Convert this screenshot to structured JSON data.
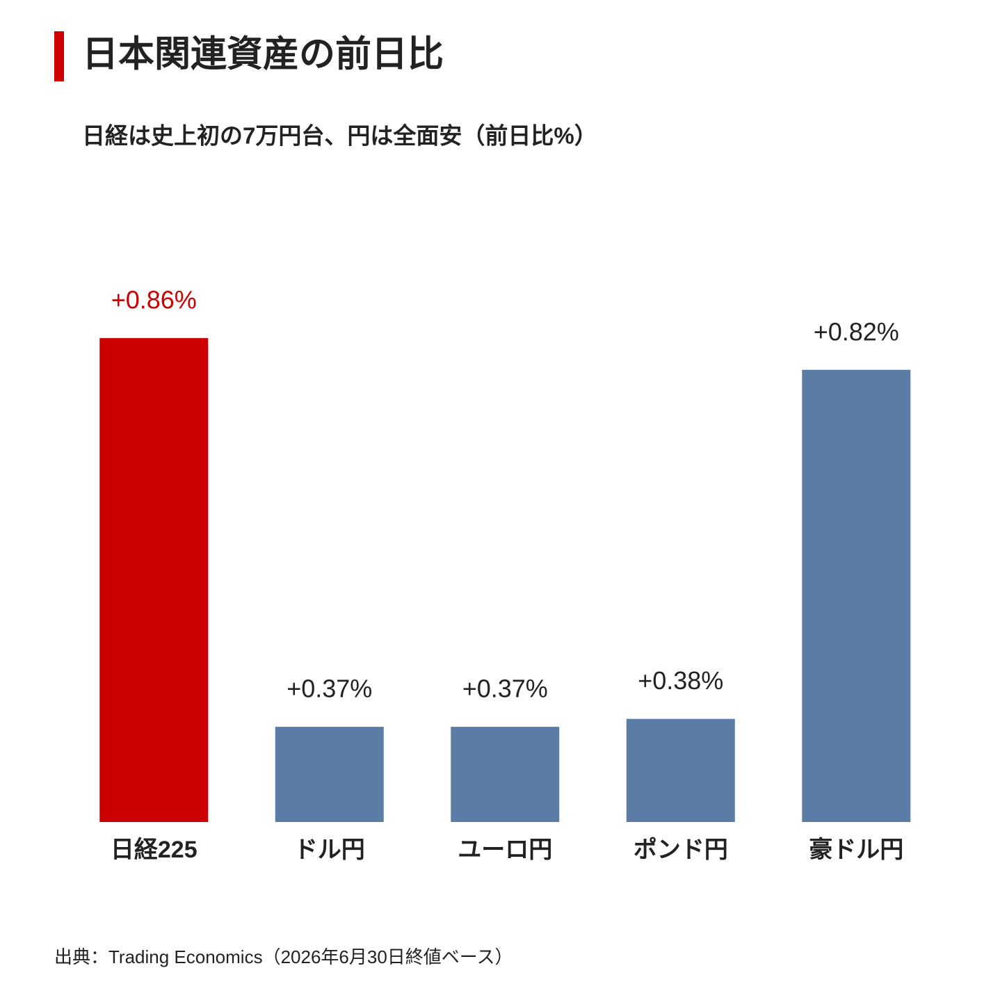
{
  "chart_data": {
    "type": "bar",
    "title": "日本関連資産の前日比",
    "subtitle": "日経は史上初の7万円台、円は全面安（前日比%）",
    "source": "出典：Trading Economics（2026年6月30日終値ベース）",
    "categories": [
      "日経225",
      "ドル円",
      "ユーロ円",
      "ポンド円",
      "豪ドル円"
    ],
    "values": [
      0.86,
      0.37,
      0.37,
      0.38,
      0.82
    ],
    "value_labels": [
      "+0.86%",
      "+0.37%",
      "+0.37%",
      "+0.38%",
      "+0.82%"
    ],
    "colors": [
      "#cc0000",
      "#5b7ca5",
      "#5b7ca5",
      "#5b7ca5",
      "#5b7ca5"
    ],
    "label_colors": [
      "#cc0000",
      "#222222",
      "#222222",
      "#222222",
      "#222222"
    ],
    "ylim": [
      0.25,
      0.9
    ]
  }
}
